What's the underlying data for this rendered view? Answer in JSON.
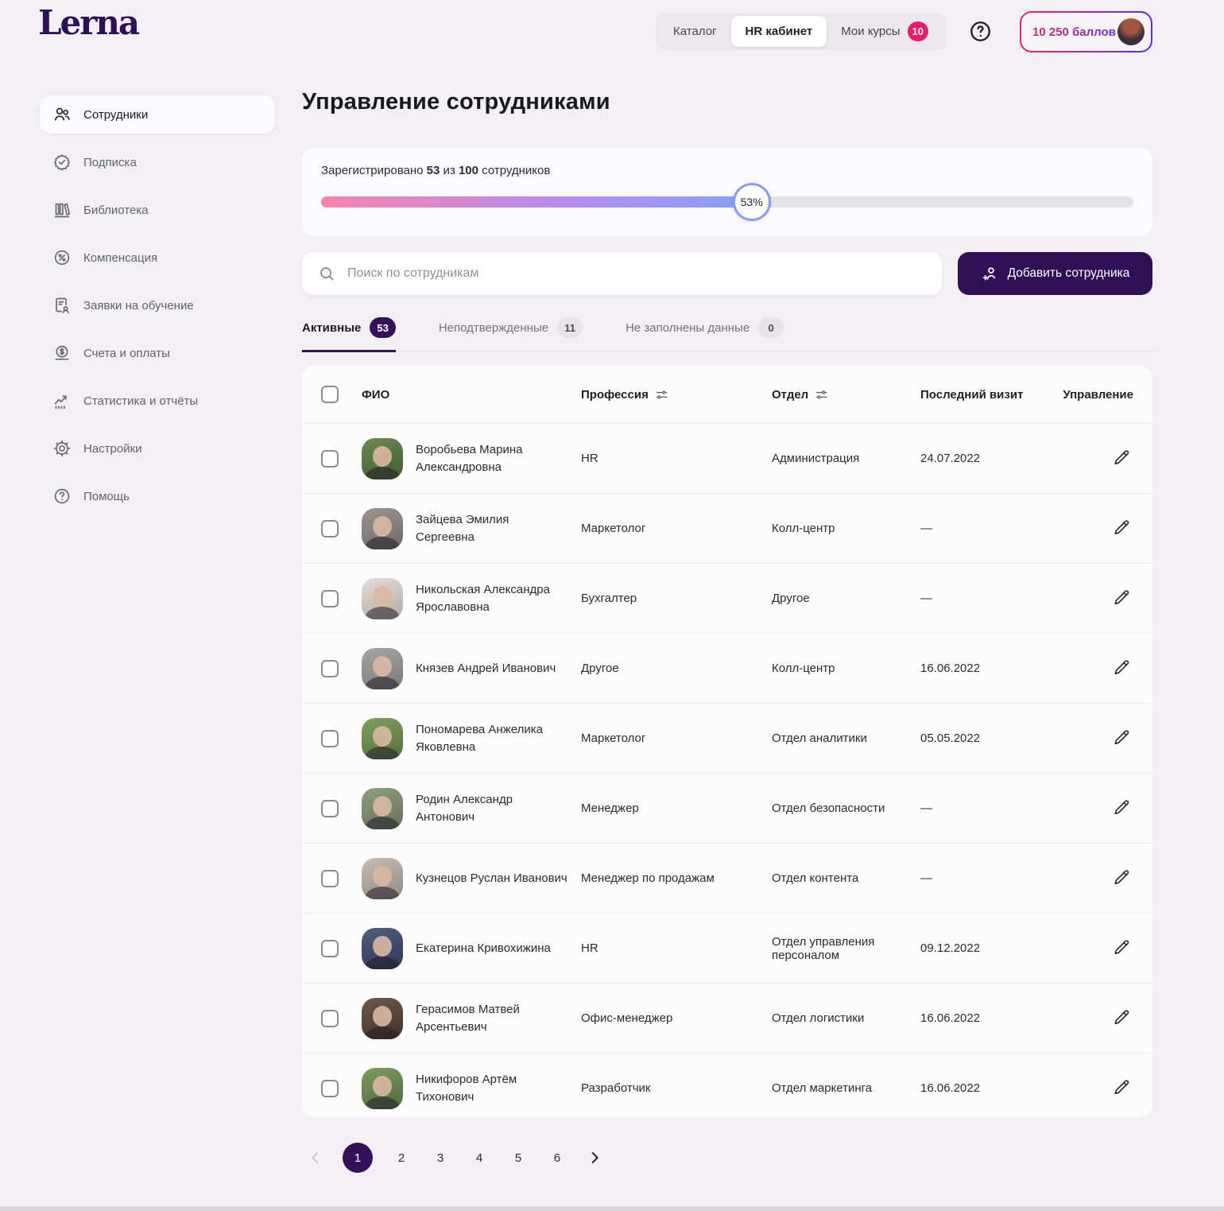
{
  "brand": {
    "logo": "Lerna"
  },
  "header": {
    "tabs": [
      {
        "label": "Каталог",
        "active": false
      },
      {
        "label": "HR кабинет",
        "active": true
      },
      {
        "label": "Мои курсы",
        "active": false,
        "badge": "10"
      }
    ],
    "points_label": "10 250 баллов"
  },
  "sidebar": {
    "items": [
      {
        "label": "Сотрудники",
        "icon": "users-icon",
        "active": true
      },
      {
        "label": "Подписка",
        "icon": "subscription-icon",
        "active": false
      },
      {
        "label": "Библиотека",
        "icon": "library-icon",
        "active": false
      },
      {
        "label": "Компенсация",
        "icon": "percent-icon",
        "active": false
      },
      {
        "label": "Заявки на обучение",
        "icon": "training-request-icon",
        "active": false
      },
      {
        "label": "Счета и оплаты",
        "icon": "payments-icon",
        "active": false
      },
      {
        "label": "Статистика и отчёты",
        "icon": "stats-icon",
        "active": false
      },
      {
        "label": "Настройки",
        "icon": "settings-icon",
        "active": false
      },
      {
        "label": "Помощь",
        "icon": "help-icon",
        "active": false
      }
    ]
  },
  "main": {
    "title": "Управление сотрудниками",
    "registration": {
      "prefix": "Зарегистрировано",
      "count": "53",
      "mid": "из",
      "total": "100",
      "suffix": "сотрудников",
      "percent_label": "53%",
      "percent_value": 53
    },
    "search": {
      "placeholder": "Поиск по сотрудникам"
    },
    "add_button": {
      "label": "Добавить сотрудника"
    },
    "tabs": [
      {
        "label": "Активные",
        "badge": "53",
        "active": true
      },
      {
        "label": "Неподтвержденные",
        "badge": "11",
        "active": false
      },
      {
        "label": "Не заполнены данные",
        "badge": "0",
        "active": false
      }
    ],
    "table": {
      "columns": [
        "ФИО",
        "Профессия",
        "Отдел",
        "Последний визит",
        "Управление"
      ],
      "rows": [
        {
          "name": "Воробьева Марина Александровна",
          "profession": "HR",
          "department": "Администрация",
          "last_visit": "24.07.2022",
          "avatar": {
            "c1": "#6b8a52",
            "c2": "#3f5c33"
          }
        },
        {
          "name": "Зайцева Эмилия Сергеевна",
          "profession": "Маркетолог",
          "department": "Колл-центр",
          "last_visit": "—",
          "avatar": {
            "c1": "#9a958f",
            "c2": "#6e6a64"
          }
        },
        {
          "name": "Никольская Александра Ярославовна",
          "profession": "Бухгалтер",
          "department": "Другое",
          "last_visit": "—",
          "avatar": {
            "c1": "#e3dcd6",
            "c2": "#b7aaa0"
          }
        },
        {
          "name": "Князев Андрей Иванович",
          "profession": "Другое",
          "department": "Колл-центр",
          "last_visit": "16.06.2022",
          "avatar": {
            "c1": "#a8a6a3",
            "c2": "#7b7977"
          }
        },
        {
          "name": "Пономарева Анжелика Яковлевна",
          "profession": "Маркетолог",
          "department": "Отдел аналитики",
          "last_visit": "05.05.2022",
          "avatar": {
            "c1": "#7fa05e",
            "c2": "#55703d"
          }
        },
        {
          "name": "Родин Александр Антонович",
          "profession": "Менеджер",
          "department": "Отдел безопасности",
          "last_visit": "—",
          "avatar": {
            "c1": "#8fa07e",
            "c2": "#636f55"
          }
        },
        {
          "name": "Кузнецов Руслан Иванович",
          "profession": "Менеджер по продажам",
          "department": "Отдел контента",
          "last_visit": "—",
          "avatar": {
            "c1": "#c4beb4",
            "c2": "#8f897f"
          }
        },
        {
          "name": "Екатерина Кривохижина",
          "profession": "HR",
          "department": "Отдел управления персоналом",
          "last_visit": "09.12.2022",
          "avatar": {
            "c1": "#51607e",
            "c2": "#2c3652"
          }
        },
        {
          "name": "Герасимов Матвей Арсентьевич",
          "profession": "Офис-менеджер",
          "department": "Отдел логистики",
          "last_visit": "16.06.2022",
          "avatar": {
            "c1": "#6e5a4b",
            "c2": "#3f3228"
          }
        },
        {
          "name": "Никифоров Артём Тихонович",
          "profession": "Разработчик",
          "department": "Отдел маркетинга",
          "last_visit": "16.06.2022",
          "avatar": {
            "c1": "#7f9a62",
            "c2": "#4f6b3c"
          }
        }
      ]
    },
    "pagination": {
      "pages": [
        "1",
        "2",
        "3",
        "4",
        "5",
        "6"
      ],
      "active": "1"
    }
  },
  "colors": {
    "brand_purple": "#2f1055",
    "accent_pink": "#ec1a68",
    "progress_gradient": [
      "#f584ad",
      "#b98ced",
      "#84a1f5"
    ],
    "progress_bubble_border": "#8b9cf0",
    "points_gradient": [
      "#e8295f",
      "#5a2ee0"
    ],
    "page_background": "#f2eff5"
  }
}
